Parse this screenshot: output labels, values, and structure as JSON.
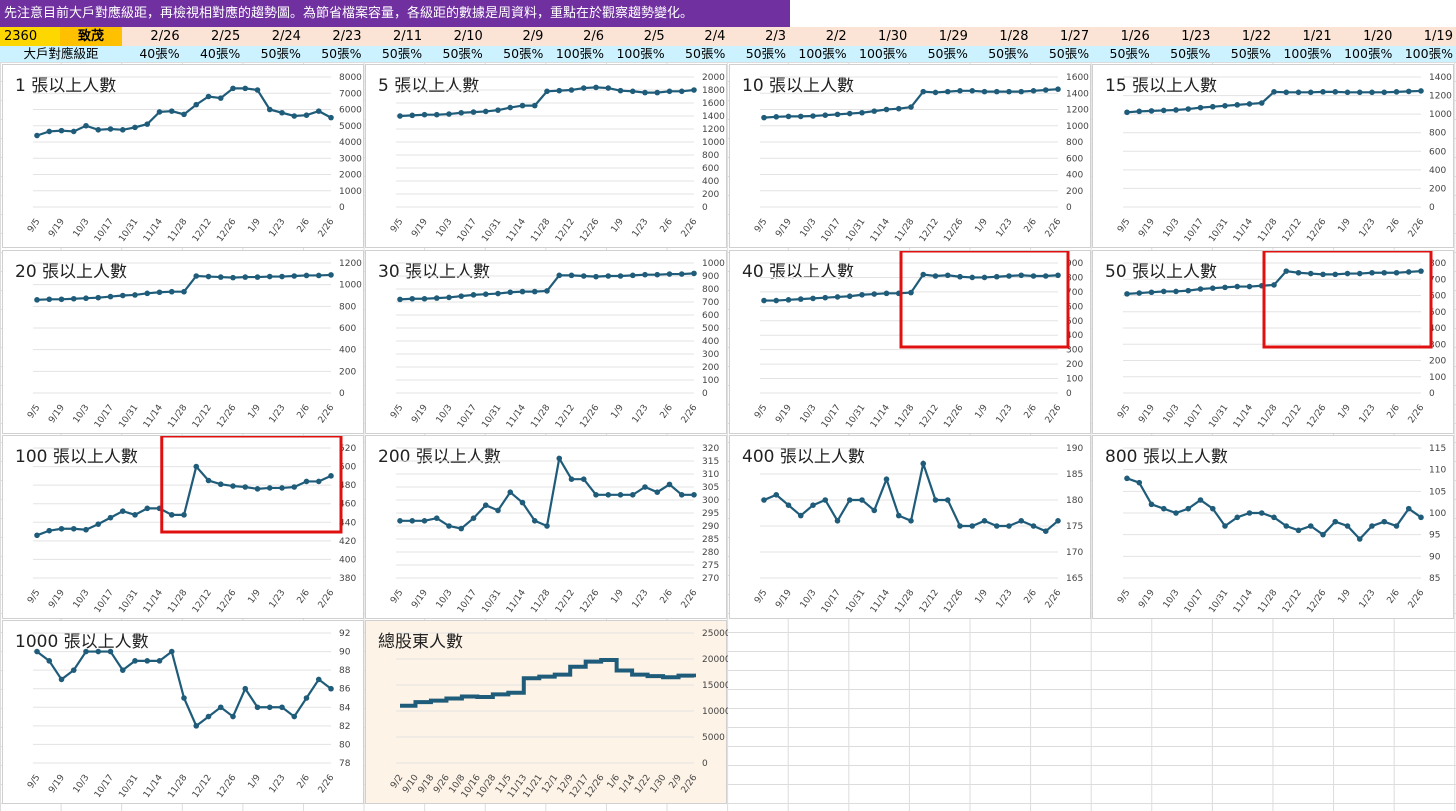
{
  "banner": "先注意目前大戶對應級距，再檢視相對應的趨勢圖。為節省檔案容量，各級距的數據是周資料，重點在於觀察趨勢變化。",
  "stock": {
    "code": "2360",
    "name": "致茂"
  },
  "row_label": "大戶對應級距",
  "dates": [
    "2/26",
    "2/25",
    "2/24",
    "2/23",
    "2/11",
    "2/10",
    "2/9",
    "2/6",
    "2/5",
    "2/4",
    "2/3",
    "2/2",
    "1/30",
    "1/29",
    "1/28",
    "1/27",
    "1/26",
    "1/23",
    "1/22",
    "1/21",
    "1/20",
    "1/19"
  ],
  "levels": [
    "40張%",
    "40張%",
    "50張%",
    "50張%",
    "50張%",
    "50張%",
    "50張%",
    "100張%",
    "100張%",
    "50張%",
    "50張%",
    "100張%",
    "100張%",
    "50張%",
    "50張%",
    "50張%",
    "50張%",
    "50張%",
    "50張%",
    "100張%",
    "100張%",
    "100張%"
  ],
  "colors": {
    "line": "#1f5c7a",
    "highlight": "#e01010",
    "banner": "#7030a0"
  },
  "chart_data": [
    {
      "type": "line",
      "title": "1 張以上人數",
      "x": [
        "9/5",
        "9/12",
        "9/19",
        "9/26",
        "10/3",
        "10/10",
        "10/17",
        "10/24",
        "10/31",
        "11/7",
        "11/14",
        "11/21",
        "11/28",
        "12/5",
        "12/12",
        "12/19",
        "12/26",
        "1/2",
        "1/9",
        "1/16",
        "1/23",
        "1/30",
        "2/6",
        "2/13",
        "2/26"
      ],
      "x_ticks": [
        "9/5",
        "9/19",
        "10/3",
        "10/17",
        "10/31",
        "11/14",
        "11/28",
        "12/12",
        "12/26",
        "1/9",
        "1/23",
        "2/6",
        "2/26"
      ],
      "values": [
        4400,
        4650,
        4700,
        4650,
        5000,
        4750,
        4800,
        4750,
        4900,
        5100,
        5850,
        5900,
        5700,
        6300,
        6800,
        6700,
        7300,
        7300,
        7200,
        6000,
        5800,
        5600,
        5650,
        5900,
        5500
      ],
      "ylim": [
        0,
        8000
      ],
      "yticks": [
        0,
        1000,
        2000,
        3000,
        4000,
        5000,
        6000,
        7000,
        8000
      ]
    },
    {
      "type": "line",
      "title": "5 張以上人數",
      "x": [
        "9/5",
        "9/12",
        "9/19",
        "9/26",
        "10/3",
        "10/10",
        "10/17",
        "10/24",
        "10/31",
        "11/7",
        "11/14",
        "11/21",
        "11/28",
        "12/5",
        "12/12",
        "12/19",
        "12/26",
        "1/2",
        "1/9",
        "1/16",
        "1/23",
        "1/30",
        "2/6",
        "2/13",
        "2/26"
      ],
      "x_ticks": [
        "9/5",
        "9/19",
        "10/3",
        "10/17",
        "10/31",
        "11/14",
        "11/28",
        "12/12",
        "12/26",
        "1/9",
        "1/23",
        "2/6",
        "2/26"
      ],
      "values": [
        1400,
        1410,
        1420,
        1420,
        1430,
        1450,
        1460,
        1470,
        1490,
        1530,
        1560,
        1560,
        1780,
        1790,
        1800,
        1830,
        1840,
        1830,
        1790,
        1780,
        1760,
        1760,
        1780,
        1780,
        1800
      ],
      "ylim": [
        0,
        2000
      ],
      "yticks": [
        0,
        200,
        400,
        600,
        800,
        1000,
        1200,
        1400,
        1600,
        1800,
        2000
      ]
    },
    {
      "type": "line",
      "title": "10 張以上人數",
      "x": [
        "9/5",
        "9/12",
        "9/19",
        "9/26",
        "10/3",
        "10/10",
        "10/17",
        "10/24",
        "10/31",
        "11/7",
        "11/14",
        "11/21",
        "11/28",
        "12/5",
        "12/12",
        "12/19",
        "12/26",
        "1/2",
        "1/9",
        "1/16",
        "1/23",
        "1/30",
        "2/6",
        "2/13",
        "2/26"
      ],
      "x_ticks": [
        "9/5",
        "9/19",
        "10/3",
        "10/17",
        "10/31",
        "11/14",
        "11/28",
        "12/12",
        "12/26",
        "1/9",
        "1/23",
        "2/6",
        "2/26"
      ],
      "values": [
        1100,
        1110,
        1115,
        1115,
        1120,
        1130,
        1140,
        1150,
        1160,
        1180,
        1200,
        1210,
        1230,
        1420,
        1410,
        1420,
        1430,
        1430,
        1420,
        1420,
        1420,
        1420,
        1430,
        1440,
        1450
      ],
      "ylim": [
        0,
        1600
      ],
      "yticks": [
        0,
        200,
        400,
        600,
        800,
        1000,
        1200,
        1400,
        1600
      ]
    },
    {
      "type": "line",
      "title": "15 張以上人數",
      "x": [
        "9/5",
        "9/12",
        "9/19",
        "9/26",
        "10/3",
        "10/10",
        "10/17",
        "10/24",
        "10/31",
        "11/7",
        "11/14",
        "11/21",
        "11/28",
        "12/5",
        "12/12",
        "12/19",
        "12/26",
        "1/2",
        "1/9",
        "1/16",
        "1/23",
        "1/30",
        "2/6",
        "2/13",
        "2/26"
      ],
      "x_ticks": [
        "9/5",
        "9/19",
        "10/3",
        "10/17",
        "10/31",
        "11/14",
        "11/28",
        "12/12",
        "12/26",
        "1/9",
        "1/23",
        "2/6",
        "2/26"
      ],
      "values": [
        1020,
        1030,
        1035,
        1040,
        1045,
        1055,
        1070,
        1080,
        1090,
        1100,
        1110,
        1120,
        1240,
        1235,
        1235,
        1235,
        1240,
        1240,
        1235,
        1235,
        1235,
        1235,
        1240,
        1245,
        1250
      ],
      "ylim": [
        0,
        1400
      ],
      "yticks": [
        0,
        200,
        400,
        600,
        800,
        1000,
        1200,
        1400
      ]
    },
    {
      "type": "line",
      "title": "20 張以上人數",
      "x": [
        "9/5",
        "9/12",
        "9/19",
        "9/26",
        "10/3",
        "10/10",
        "10/17",
        "10/24",
        "10/31",
        "11/7",
        "11/14",
        "11/21",
        "11/28",
        "12/5",
        "12/12",
        "12/19",
        "12/26",
        "1/2",
        "1/9",
        "1/16",
        "1/23",
        "1/30",
        "2/6",
        "2/13",
        "2/26"
      ],
      "x_ticks": [
        "9/5",
        "9/19",
        "10/3",
        "10/17",
        "10/31",
        "11/14",
        "11/28",
        "12/12",
        "12/26",
        "1/9",
        "1/23",
        "2/6",
        "2/26"
      ],
      "values": [
        860,
        865,
        865,
        870,
        875,
        880,
        890,
        900,
        905,
        920,
        930,
        935,
        935,
        1080,
        1075,
        1070,
        1065,
        1070,
        1070,
        1075,
        1075,
        1080,
        1085,
        1085,
        1090
      ],
      "ylim": [
        0,
        1200
      ],
      "yticks": [
        0,
        200,
        400,
        600,
        800,
        1000,
        1200
      ]
    },
    {
      "type": "line",
      "title": "30 張以上人數",
      "x": [
        "9/5",
        "9/12",
        "9/19",
        "9/26",
        "10/3",
        "10/10",
        "10/17",
        "10/24",
        "10/31",
        "11/7",
        "11/14",
        "11/21",
        "11/28",
        "12/5",
        "12/12",
        "12/19",
        "12/26",
        "1/2",
        "1/9",
        "1/16",
        "1/23",
        "1/30",
        "2/6",
        "2/13",
        "2/26"
      ],
      "x_ticks": [
        "9/5",
        "9/19",
        "10/3",
        "10/17",
        "10/31",
        "11/14",
        "11/28",
        "12/12",
        "12/26",
        "1/9",
        "1/23",
        "2/6",
        "2/26"
      ],
      "values": [
        720,
        725,
        725,
        730,
        735,
        745,
        755,
        760,
        765,
        775,
        780,
        780,
        785,
        905,
        905,
        900,
        895,
        900,
        900,
        905,
        910,
        910,
        915,
        915,
        920
      ],
      "ylim": [
        0,
        1000
      ],
      "yticks": [
        0,
        100,
        200,
        300,
        400,
        500,
        600,
        700,
        800,
        900,
        1000
      ]
    },
    {
      "type": "line",
      "title": "40 張以上人數",
      "x": [
        "9/5",
        "9/12",
        "9/19",
        "9/26",
        "10/3",
        "10/10",
        "10/17",
        "10/24",
        "10/31",
        "11/7",
        "11/14",
        "11/21",
        "11/28",
        "12/5",
        "12/12",
        "12/19",
        "12/26",
        "1/2",
        "1/9",
        "1/16",
        "1/23",
        "1/30",
        "2/6",
        "2/13",
        "2/26"
      ],
      "x_ticks": [
        "9/5",
        "9/19",
        "10/3",
        "10/17",
        "10/31",
        "11/14",
        "11/28",
        "12/12",
        "12/26",
        "1/9",
        "1/23",
        "2/6",
        "2/26"
      ],
      "values": [
        640,
        640,
        645,
        650,
        655,
        660,
        665,
        670,
        680,
        685,
        690,
        690,
        695,
        820,
        810,
        815,
        805,
        800,
        800,
        805,
        810,
        815,
        810,
        810,
        815
      ],
      "ylim": [
        0,
        900
      ],
      "yticks": [
        0,
        100,
        200,
        300,
        400,
        500,
        600,
        700,
        800,
        900
      ],
      "highlight": [
        12,
        24
      ]
    },
    {
      "type": "line",
      "title": "50 張以上人數",
      "x": [
        "9/5",
        "9/12",
        "9/19",
        "9/26",
        "10/3",
        "10/10",
        "10/17",
        "10/24",
        "10/31",
        "11/7",
        "11/14",
        "11/21",
        "11/28",
        "12/5",
        "12/12",
        "12/19",
        "12/26",
        "1/2",
        "1/9",
        "1/16",
        "1/23",
        "1/30",
        "2/6",
        "2/13",
        "2/26"
      ],
      "x_ticks": [
        "9/5",
        "9/19",
        "10/3",
        "10/17",
        "10/31",
        "11/14",
        "11/28",
        "12/12",
        "12/26",
        "1/9",
        "1/23",
        "2/6",
        "2/26"
      ],
      "values": [
        610,
        615,
        620,
        625,
        625,
        630,
        640,
        645,
        650,
        655,
        655,
        660,
        665,
        750,
        740,
        735,
        730,
        730,
        735,
        735,
        740,
        740,
        740,
        745,
        750
      ],
      "ylim": [
        0,
        800
      ],
      "yticks": [
        0,
        100,
        200,
        300,
        400,
        500,
        600,
        700,
        800
      ],
      "highlight": [
        12,
        24
      ]
    },
    {
      "type": "line",
      "title": "100 張以上人數",
      "x": [
        "9/5",
        "9/12",
        "9/19",
        "9/26",
        "10/3",
        "10/10",
        "10/17",
        "10/24",
        "10/31",
        "11/7",
        "11/14",
        "11/21",
        "11/28",
        "12/5",
        "12/12",
        "12/19",
        "12/26",
        "1/2",
        "1/9",
        "1/16",
        "1/23",
        "1/30",
        "2/6",
        "2/13",
        "2/26"
      ],
      "x_ticks": [
        "9/5",
        "9/19",
        "10/3",
        "10/17",
        "10/31",
        "11/14",
        "11/28",
        "12/12",
        "12/26",
        "1/9",
        "1/23",
        "2/6",
        "2/26"
      ],
      "values": [
        426,
        431,
        433,
        433,
        432,
        438,
        445,
        452,
        448,
        455,
        455,
        448,
        448,
        500,
        485,
        481,
        479,
        478,
        476,
        477,
        477,
        478,
        484,
        484,
        490
      ],
      "ylim": [
        380,
        520
      ],
      "yticks": [
        380,
        400,
        420,
        440,
        460,
        480,
        500,
        520
      ],
      "highlight": [
        11,
        24
      ]
    },
    {
      "type": "line",
      "title": "200 張以上人數",
      "x": [
        "9/5",
        "9/12",
        "9/19",
        "9/26",
        "10/3",
        "10/10",
        "10/17",
        "10/24",
        "10/31",
        "11/7",
        "11/14",
        "11/21",
        "11/28",
        "12/5",
        "12/12",
        "12/19",
        "12/26",
        "1/2",
        "1/9",
        "1/16",
        "1/23",
        "1/30",
        "2/6",
        "2/13",
        "2/26"
      ],
      "x_ticks": [
        "9/5",
        "9/19",
        "10/3",
        "10/17",
        "10/31",
        "11/14",
        "11/28",
        "12/12",
        "12/26",
        "1/9",
        "1/23",
        "2/6",
        "2/26"
      ],
      "values": [
        292,
        292,
        292,
        293,
        290,
        289,
        293,
        298,
        296,
        303,
        299,
        292,
        290,
        316,
        308,
        308,
        302,
        302,
        302,
        302,
        305,
        303,
        306,
        302,
        302
      ],
      "ylim": [
        270,
        320
      ],
      "yticks": [
        270,
        275,
        280,
        285,
        290,
        295,
        300,
        305,
        310,
        315,
        320
      ]
    },
    {
      "type": "line",
      "title": "400 張以上人數",
      "x": [
        "9/5",
        "9/12",
        "9/19",
        "9/26",
        "10/3",
        "10/10",
        "10/17",
        "10/24",
        "10/31",
        "11/7",
        "11/14",
        "11/21",
        "11/28",
        "12/5",
        "12/12",
        "12/19",
        "12/26",
        "1/2",
        "1/9",
        "1/16",
        "1/23",
        "1/30",
        "2/6",
        "2/13",
        "2/26"
      ],
      "x_ticks": [
        "9/5",
        "9/19",
        "10/3",
        "10/17",
        "10/31",
        "11/14",
        "11/28",
        "12/12",
        "12/26",
        "1/9",
        "1/23",
        "2/6",
        "2/26"
      ],
      "values": [
        180,
        181,
        179,
        177,
        179,
        180,
        176,
        180,
        180,
        178,
        184,
        177,
        176,
        187,
        180,
        180,
        175,
        175,
        176,
        175,
        175,
        176,
        175,
        174,
        176
      ],
      "ylim": [
        165,
        190
      ],
      "yticks": [
        165,
        170,
        175,
        180,
        185,
        190
      ]
    },
    {
      "type": "line",
      "title": "800 張以上人數",
      "x": [
        "9/5",
        "9/12",
        "9/19",
        "9/26",
        "10/3",
        "10/10",
        "10/17",
        "10/24",
        "10/31",
        "11/7",
        "11/14",
        "11/21",
        "11/28",
        "12/5",
        "12/12",
        "12/19",
        "12/26",
        "1/2",
        "1/9",
        "1/16",
        "1/23",
        "1/30",
        "2/6",
        "2/13",
        "2/26"
      ],
      "x_ticks": [
        "9/5",
        "9/19",
        "10/3",
        "10/17",
        "10/31",
        "11/14",
        "11/28",
        "12/12",
        "12/26",
        "1/9",
        "1/23",
        "2/6",
        "2/26"
      ],
      "values": [
        108,
        107,
        102,
        101,
        100,
        101,
        103,
        101,
        97,
        99,
        100,
        100,
        99,
        97,
        96,
        97,
        95,
        98,
        97,
        94,
        97,
        98,
        97,
        101,
        99
      ],
      "ylim": [
        85,
        115
      ],
      "yticks": [
        85,
        90,
        95,
        100,
        105,
        110,
        115
      ]
    },
    {
      "type": "line",
      "title": "1000 張以上人數",
      "x": [
        "9/5",
        "9/12",
        "9/19",
        "9/26",
        "10/3",
        "10/10",
        "10/17",
        "10/24",
        "10/31",
        "11/7",
        "11/14",
        "11/21",
        "11/28",
        "12/5",
        "12/12",
        "12/19",
        "12/26",
        "1/2",
        "1/9",
        "1/16",
        "1/23",
        "1/30",
        "2/6",
        "2/13",
        "2/26"
      ],
      "x_ticks": [
        "9/5",
        "9/19",
        "10/3",
        "10/17",
        "10/31",
        "11/14",
        "11/28",
        "12/12",
        "12/26",
        "1/9",
        "1/23",
        "2/6",
        "2/26"
      ],
      "values": [
        90,
        89,
        87,
        88,
        90,
        90,
        90,
        88,
        89,
        89,
        89,
        90,
        85,
        82,
        83,
        84,
        83,
        86,
        84,
        84,
        84,
        83,
        85,
        87,
        86
      ],
      "ylim": [
        78,
        92
      ],
      "yticks": [
        78,
        80,
        82,
        84,
        86,
        88,
        90,
        92
      ]
    },
    {
      "type": "line",
      "title": "總股東人數",
      "style": "thick",
      "alt": true,
      "x": [
        "9/2",
        "9/10",
        "9/18",
        "9/26",
        "10/8",
        "10/16",
        "10/28",
        "11/5",
        "11/13",
        "11/21",
        "12/1",
        "12/9",
        "12/17",
        "12/26",
        "1/6",
        "1/14",
        "1/22",
        "1/30",
        "2/9",
        "2/26"
      ],
      "x_ticks": [
        "9/2",
        "9/10",
        "9/18",
        "9/26",
        "10/8",
        "10/16",
        "10/28",
        "11/5",
        "11/13",
        "11/21",
        "12/1",
        "12/9",
        "12/17",
        "12/26",
        "1/6",
        "1/14",
        "1/22",
        "1/30",
        "2/9",
        "2/26"
      ],
      "values": [
        11000,
        11700,
        12000,
        12400,
        12800,
        12700,
        13200,
        13500,
        16300,
        16600,
        17000,
        18500,
        19500,
        19800,
        17800,
        17000,
        16700,
        16500,
        16800,
        16500
      ],
      "ylim": [
        0,
        25000
      ],
      "yticks": [
        0,
        5000,
        10000,
        15000,
        20000,
        25000
      ]
    }
  ]
}
